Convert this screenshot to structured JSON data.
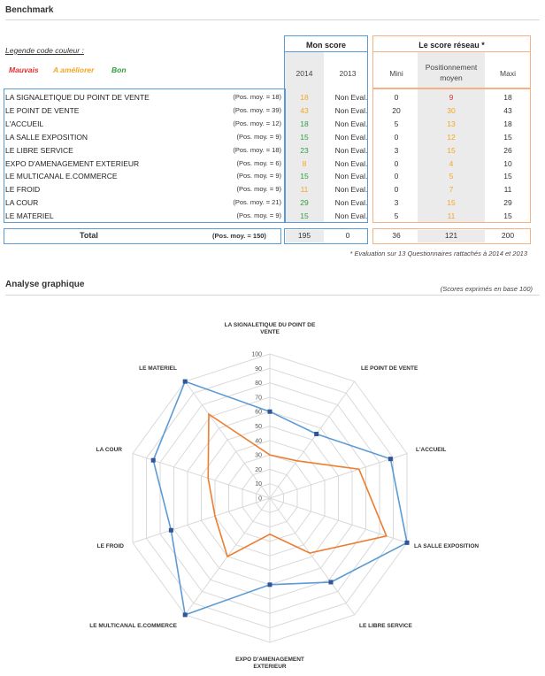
{
  "benchmark": {
    "title": "Benchmark",
    "legend": {
      "title": "Legende code couleur :",
      "items": [
        {
          "label": "Mauvais",
          "color": "#e03030"
        },
        {
          "label": "A améliorer",
          "color": "#f5a623"
        },
        {
          "label": "Bon",
          "color": "#2e9e3e"
        }
      ]
    },
    "mon_score": {
      "title": "Mon score",
      "col_2014": "2014",
      "col_2013": "2013"
    },
    "reseau": {
      "title": "Le score réseau *",
      "col_mini": "Mini",
      "col_moyen": "Positionnement moyen",
      "col_maxi": "Maxi"
    },
    "rows": [
      {
        "label": "LA SIGNALETIQUE DU POINT DE VENTE",
        "pos": "(Pos. moy. = 18)",
        "s2014": "18",
        "s2014_color": "orange",
        "s2013": "Non Eval.",
        "mini": "0",
        "moyen": "9",
        "moyen_color": "red",
        "maxi": "18"
      },
      {
        "label": "LE POINT DE VENTE",
        "pos": "(Pos. moy. = 39)",
        "s2014": "43",
        "s2014_color": "orange",
        "s2013": "Non Eval.",
        "mini": "20",
        "moyen": "30",
        "moyen_color": "orange",
        "maxi": "43"
      },
      {
        "label": "L'ACCUEIL",
        "pos": "(Pos. moy. = 12)",
        "s2014": "18",
        "s2014_color": "green",
        "s2013": "Non Eval.",
        "mini": "5",
        "moyen": "13",
        "moyen_color": "orange",
        "maxi": "18"
      },
      {
        "label": "LA SALLE EXPOSITION",
        "pos": "(Pos. moy. = 9)",
        "s2014": "15",
        "s2014_color": "green",
        "s2013": "Non Eval.",
        "mini": "0",
        "moyen": "12",
        "moyen_color": "orange",
        "maxi": "15"
      },
      {
        "label": "LE LIBRE SERVICE",
        "pos": "(Pos. moy. = 18)",
        "s2014": "23",
        "s2014_color": "green",
        "s2013": "Non Eval.",
        "mini": "3",
        "moyen": "15",
        "moyen_color": "orange",
        "maxi": "26"
      },
      {
        "label": "EXPO D'AMENAGEMENT EXTERIEUR",
        "pos": "(Pos. moy. = 6)",
        "s2014": "8",
        "s2014_color": "orange",
        "s2013": "Non Eval.",
        "mini": "0",
        "moyen": "4",
        "moyen_color": "orange",
        "maxi": "10"
      },
      {
        "label": "LE MULTICANAL E.COMMERCE",
        "pos": "(Pos. moy. = 9)",
        "s2014": "15",
        "s2014_color": "green",
        "s2013": "Non Eval.",
        "mini": "0",
        "moyen": "5",
        "moyen_color": "orange",
        "maxi": "15"
      },
      {
        "label": "LE FROID",
        "pos": "(Pos. moy. = 9)",
        "s2014": "11",
        "s2014_color": "orange",
        "s2013": "Non Eval.",
        "mini": "0",
        "moyen": "7",
        "moyen_color": "orange",
        "maxi": "11"
      },
      {
        "label": "LA COUR",
        "pos": "(Pos. moy. = 21)",
        "s2014": "29",
        "s2014_color": "green",
        "s2013": "Non Eval.",
        "mini": "3",
        "moyen": "15",
        "moyen_color": "orange",
        "maxi": "29"
      },
      {
        "label": "LE MATERIEL",
        "pos": "(Pos. moy. = 9)",
        "s2014": "15",
        "s2014_color": "green",
        "s2013": "Non Eval.",
        "mini": "5",
        "moyen": "11",
        "moyen_color": "orange",
        "maxi": "15"
      }
    ],
    "total": {
      "label": "Total",
      "pos": "(Pos. moy. = 150)",
      "s2014": "195",
      "s2013": "0",
      "mini": "36",
      "moyen": "121",
      "maxi": "200"
    },
    "footnote": "* Evaluation sur 13 Questionnaires rattachés à 2014 et 2013"
  },
  "analyse": {
    "title": "Analyse graphique",
    "subtitle": "(Scores exprimés en base 100)"
  },
  "chart_data": {
    "type": "radar",
    "axes": [
      "LA SIGNALETIQUE DU POINT DE VENTE",
      "LE POINT DE VENTE",
      "L'ACCUEIL",
      "LA SALLE EXPOSITION",
      "LE LIBRE SERVICE",
      "EXPO D'AMENAGEMENT EXTERIEUR",
      "LE MULTICANAL E.COMMERCE",
      "LE FROID",
      "LA COUR",
      "LE MATERIEL"
    ],
    "rlim": [
      0,
      100
    ],
    "ticks": [
      0,
      10,
      20,
      30,
      40,
      50,
      60,
      70,
      80,
      90,
      100
    ],
    "grid": true,
    "series": [
      {
        "color": "#5b9bd5",
        "values": [
          60,
          55,
          88,
          100,
          72,
          60,
          100,
          72,
          85,
          100
        ]
      },
      {
        "color": "#ed7d31",
        "values": [
          30,
          32,
          65,
          85,
          47,
          25,
          50,
          40,
          45,
          72
        ]
      }
    ]
  }
}
